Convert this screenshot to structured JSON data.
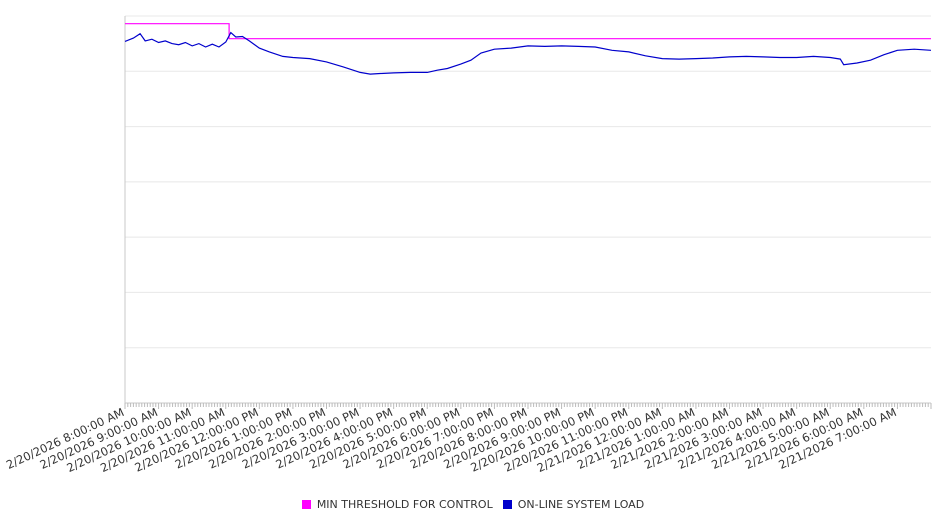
{
  "chart_data": {
    "type": "line",
    "title": "",
    "xlabel": "",
    "ylabel": "",
    "grid": true,
    "y_tick_labels_shown": false,
    "legend_position": "bottom-center",
    "x_tick_labels": [
      "2/20/2026 8:00:00 AM",
      "2/20/2026 9:00:00 AM",
      "2/20/2026 10:00:00 AM",
      "2/20/2026 11:00:00 AM",
      "2/20/2026 12:00:00 PM",
      "2/20/2026 1:00:00 PM",
      "2/20/2026 2:00:00 PM",
      "2/20/2026 3:00:00 PM",
      "2/20/2026 4:00:00 PM",
      "2/20/2026 5:00:00 PM",
      "2/20/2026 6:00:00 PM",
      "2/20/2026 7:00:00 PM",
      "2/20/2026 8:00:00 PM",
      "2/20/2026 9:00:00 PM",
      "2/20/2026 10:00:00 PM",
      "2/20/2026 11:00:00 PM",
      "2/21/2026 12:00:00 AM",
      "2/21/2026 1:00:00 AM",
      "2/21/2026 2:00:00 AM",
      "2/21/2026 3:00:00 AM",
      "2/21/2026 4:00:00 AM",
      "2/21/2026 5:00:00 AM",
      "2/21/2026 6:00:00 AM",
      "2/21/2026 7:00:00 AM"
    ],
    "x_range_hours": [
      0,
      24
    ],
    "ylim": [
      0,
      7
    ],
    "series": [
      {
        "name": "MIN THRESHOLD FOR CONTROL",
        "color": "#ff00ff",
        "points": [
          [
            0,
            6.86
          ],
          [
            3.1,
            6.86
          ],
          [
            3.1,
            6.59
          ],
          [
            24,
            6.59
          ]
        ]
      },
      {
        "name": "ON-LINE SYSTEM LOAD",
        "color": "#0000cc",
        "points": [
          [
            0,
            6.54
          ],
          [
            0.25,
            6.6
          ],
          [
            0.45,
            6.68
          ],
          [
            0.6,
            6.55
          ],
          [
            0.8,
            6.58
          ],
          [
            1.0,
            6.52
          ],
          [
            1.2,
            6.55
          ],
          [
            1.4,
            6.5
          ],
          [
            1.6,
            6.48
          ],
          [
            1.8,
            6.52
          ],
          [
            2.0,
            6.46
          ],
          [
            2.2,
            6.5
          ],
          [
            2.4,
            6.44
          ],
          [
            2.6,
            6.49
          ],
          [
            2.8,
            6.44
          ],
          [
            3.0,
            6.53
          ],
          [
            3.15,
            6.7
          ],
          [
            3.3,
            6.62
          ],
          [
            3.5,
            6.63
          ],
          [
            3.7,
            6.55
          ],
          [
            4.0,
            6.42
          ],
          [
            4.3,
            6.35
          ],
          [
            4.7,
            6.27
          ],
          [
            5.0,
            6.25
          ],
          [
            5.5,
            6.23
          ],
          [
            6.0,
            6.17
          ],
          [
            6.5,
            6.08
          ],
          [
            7.0,
            5.98
          ],
          [
            7.3,
            5.95
          ],
          [
            7.6,
            5.96
          ],
          [
            8.0,
            5.97
          ],
          [
            8.5,
            5.98
          ],
          [
            9.0,
            5.98
          ],
          [
            9.3,
            6.02
          ],
          [
            9.6,
            6.05
          ],
          [
            10.0,
            6.13
          ],
          [
            10.3,
            6.2
          ],
          [
            10.6,
            6.33
          ],
          [
            11.0,
            6.4
          ],
          [
            11.5,
            6.42
          ],
          [
            12.0,
            6.46
          ],
          [
            12.5,
            6.45
          ],
          [
            13.0,
            6.46
          ],
          [
            13.5,
            6.45
          ],
          [
            14.0,
            6.44
          ],
          [
            14.5,
            6.38
          ],
          [
            15.0,
            6.35
          ],
          [
            15.5,
            6.28
          ],
          [
            16.0,
            6.23
          ],
          [
            16.5,
            6.22
          ],
          [
            17.0,
            6.23
          ],
          [
            17.5,
            6.24
          ],
          [
            18.0,
            6.26
          ],
          [
            18.5,
            6.27
          ],
          [
            19.0,
            6.26
          ],
          [
            19.5,
            6.25
          ],
          [
            20.0,
            6.25
          ],
          [
            20.5,
            6.27
          ],
          [
            21.0,
            6.25
          ],
          [
            21.3,
            6.22
          ],
          [
            21.4,
            6.12
          ],
          [
            21.8,
            6.15
          ],
          [
            22.2,
            6.2
          ],
          [
            22.6,
            6.3
          ],
          [
            23.0,
            6.38
          ],
          [
            23.5,
            6.4
          ],
          [
            24.0,
            6.38
          ]
        ]
      }
    ]
  },
  "legend": {
    "items": [
      {
        "label": "MIN THRESHOLD FOR CONTROL",
        "color": "#ff00ff"
      },
      {
        "label": "ON-LINE SYSTEM LOAD",
        "color": "#0000cc"
      }
    ]
  }
}
